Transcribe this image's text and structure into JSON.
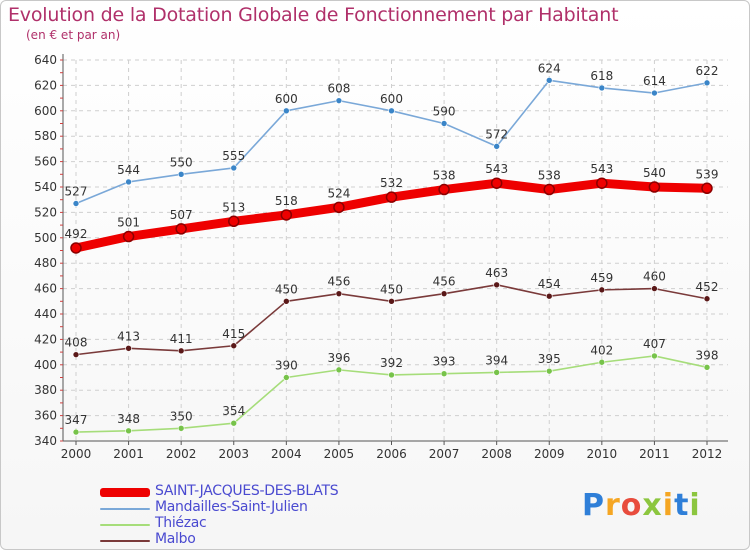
{
  "header": {
    "title": "Evolution de la Dotation Globale de Fonctionnement par Habitant",
    "subtitle": "(en € et par an)"
  },
  "logo": {
    "text": "Proxiti",
    "letters": [
      "P",
      "r",
      "o",
      "x",
      "i",
      "t",
      "i"
    ],
    "colors": [
      "#2f7fd8",
      "#f5a623",
      "#e84c3d",
      "#8cc63f",
      "#f5a623",
      "#2f7fd8",
      "#8cc63f"
    ]
  },
  "chart_data": {
    "type": "line",
    "title": "Evolution de la Dotation Globale de Fonctionnement par Habitant",
    "subtitle": "(en € et par an)",
    "xlabel": "",
    "ylabel": "",
    "x": [
      "2000",
      "2001",
      "2002",
      "2003",
      "2004",
      "2005",
      "2006",
      "2007",
      "2008",
      "2009",
      "2010",
      "2011",
      "2012"
    ],
    "ylim": [
      340,
      640
    ],
    "yticks": [
      340,
      360,
      380,
      400,
      420,
      440,
      460,
      480,
      500,
      520,
      540,
      560,
      580,
      600,
      620,
      640
    ],
    "grid": true,
    "legend_position": "bottom-left",
    "series": [
      {
        "name": "SAINT-JACQUES-DES-BLATS",
        "color": "#ee0000",
        "marker_color": "#8b0000",
        "emphasis": true,
        "values": [
          492,
          501,
          507,
          513,
          518,
          524,
          532,
          538,
          543,
          538,
          543,
          540,
          539
        ]
      },
      {
        "name": "Mandailles-Saint-Julien",
        "color": "#7aa8d8",
        "marker_color": "#3a85c8",
        "emphasis": false,
        "values": [
          527,
          544,
          550,
          555,
          600,
          608,
          600,
          590,
          572,
          624,
          618,
          614,
          622
        ]
      },
      {
        "name": "Thiézac",
        "color": "#a6dd7a",
        "marker_color": "#77c34a",
        "emphasis": false,
        "values": [
          347,
          348,
          350,
          354,
          390,
          396,
          392,
          393,
          394,
          395,
          402,
          407,
          398
        ]
      },
      {
        "name": "Malbo",
        "color": "#7a3a3a",
        "marker_color": "#5a1818",
        "emphasis": false,
        "values": [
          408,
          413,
          411,
          415,
          450,
          456,
          450,
          456,
          463,
          454,
          459,
          460,
          452
        ]
      }
    ]
  }
}
